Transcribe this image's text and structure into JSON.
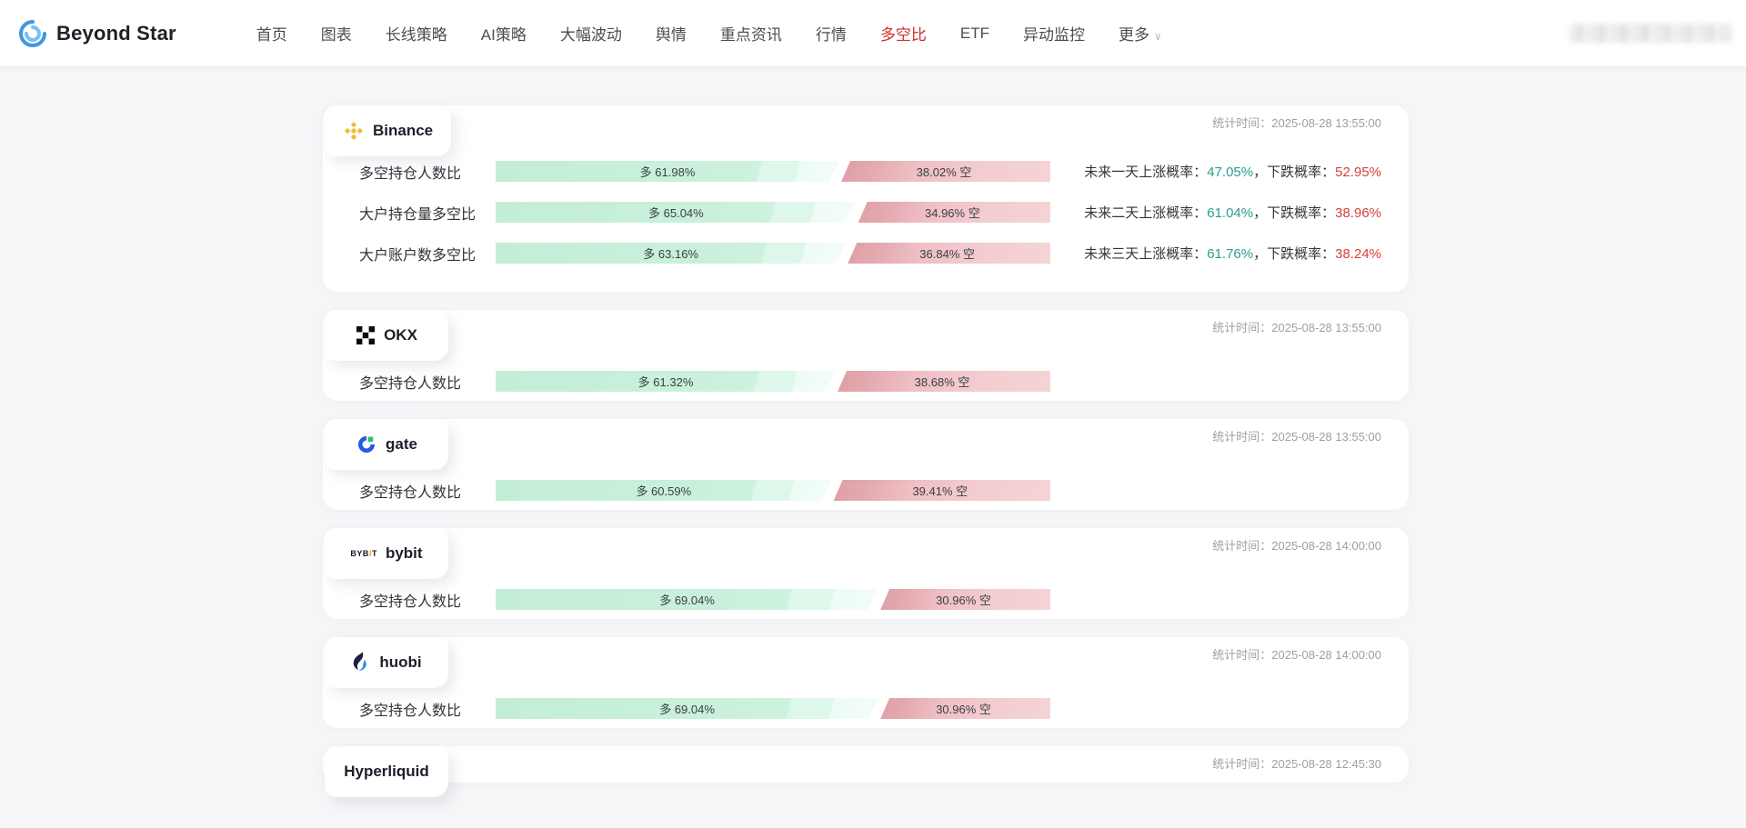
{
  "nav": {
    "brand": "Beyond Star",
    "items": [
      {
        "id": "home",
        "label": "首页",
        "active": false
      },
      {
        "id": "charts",
        "label": "图表",
        "active": false
      },
      {
        "id": "long-term-strategy",
        "label": "长线策略",
        "active": false
      },
      {
        "id": "ai-strategy",
        "label": "AI策略",
        "active": false
      },
      {
        "id": "big-moves",
        "label": "大幅波动",
        "active": false
      },
      {
        "id": "sentiment",
        "label": "舆情",
        "active": false
      },
      {
        "id": "key-news",
        "label": "重点资讯",
        "active": false
      },
      {
        "id": "market",
        "label": "行情",
        "active": false
      },
      {
        "id": "long-short-ratio",
        "label": "多空比",
        "active": true
      },
      {
        "id": "etf",
        "label": "ETF",
        "active": false
      },
      {
        "id": "anomaly-monitor",
        "label": "异动监控",
        "active": false
      },
      {
        "id": "more",
        "label": "更多",
        "active": false,
        "chevron": true
      }
    ]
  },
  "labels": {
    "stat_time_prefix": "统计时间："
  },
  "colors": {
    "nav_active": "#cf2f2f",
    "up_text": "#2a9d8f",
    "down_text": "#d6403c",
    "long_bar": "#c3edd6",
    "short_bar": "#efc0c5",
    "binance_brand": "#f3ba2f",
    "gate_blue": "#2557e8",
    "gate_green": "#2fbf71",
    "bybit_orange": "#f7a600",
    "huobi_blue": "#2e8de0",
    "timestamp_gray": "#9aa0a8"
  },
  "exchanges": [
    {
      "name": "Binance",
      "icon": "binance",
      "stat_time": "2025-08-28 13:55:00",
      "rows": [
        {
          "label": "多空持仓人数比",
          "long_pct": 61.98,
          "short_pct": 38.02,
          "long_text": "多 61.98%",
          "short_text": "38.02% 空",
          "forecast": {
            "prefix": "未来一天上涨概率：",
            "up": "47.05%",
            "mid": "，下跌概率：",
            "down": "52.95%"
          }
        },
        {
          "label": "大户持仓量多空比",
          "long_pct": 65.04,
          "short_pct": 34.96,
          "long_text": "多 65.04%",
          "short_text": "34.96% 空",
          "forecast": {
            "prefix": "未来二天上涨概率：",
            "up": "61.04%",
            "mid": "，下跌概率：",
            "down": "38.96%"
          }
        },
        {
          "label": "大户账户数多空比",
          "long_pct": 63.16,
          "short_pct": 36.84,
          "long_text": "多 63.16%",
          "short_text": "36.84% 空",
          "forecast": {
            "prefix": "未来三天上涨概率：",
            "up": "61.76%",
            "mid": "，下跌概率：",
            "down": "38.24%"
          }
        }
      ]
    },
    {
      "name": "OKX",
      "icon": "okx",
      "stat_time": "2025-08-28 13:55:00",
      "rows": [
        {
          "label": "多空持仓人数比",
          "long_pct": 61.32,
          "short_pct": 38.68,
          "long_text": "多 61.32%",
          "short_text": "38.68% 空"
        }
      ]
    },
    {
      "name": "gate",
      "icon": "gate",
      "stat_time": "2025-08-28 13:55:00",
      "rows": [
        {
          "label": "多空持仓人数比",
          "long_pct": 60.59,
          "short_pct": 39.41,
          "long_text": "多 60.59%",
          "short_text": "39.41% 空"
        }
      ]
    },
    {
      "name": "bybit",
      "icon": "bybit",
      "stat_time": "2025-08-28 14:00:00",
      "rows": [
        {
          "label": "多空持仓人数比",
          "long_pct": 69.04,
          "short_pct": 30.96,
          "long_text": "多 69.04%",
          "short_text": "30.96% 空"
        }
      ]
    },
    {
      "name": "huobi",
      "icon": "huobi",
      "stat_time": "2025-08-28 14:00:00",
      "rows": [
        {
          "label": "多空持仓人数比",
          "long_pct": 69.04,
          "short_pct": 30.96,
          "long_text": "多 69.04%",
          "short_text": "30.96% 空"
        }
      ]
    },
    {
      "name": "Hyperliquid",
      "icon": null,
      "stat_time": "2025-08-28 12:45:30",
      "cut_off": true,
      "rows": []
    }
  ]
}
